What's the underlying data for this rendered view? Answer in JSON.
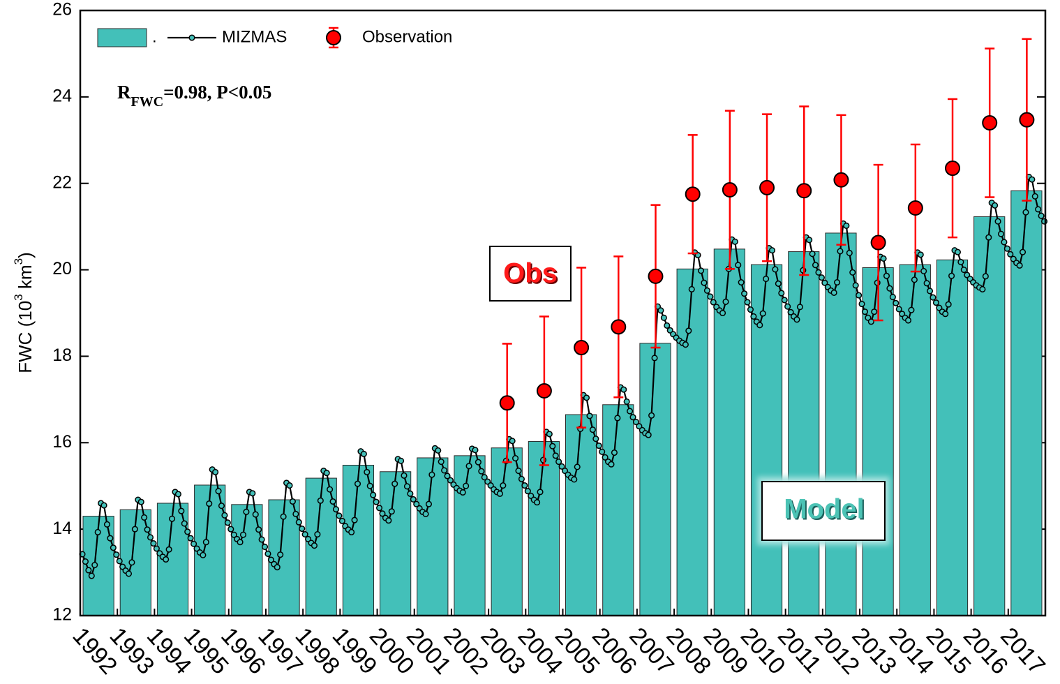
{
  "chart_data": {
    "type": "bar",
    "ylabel": [
      "FWC (10",
      "3",
      " km",
      "3",
      ")"
    ],
    "annotation": {
      "text": "R",
      "sub": "FWC",
      "rest": "=0.98, P<0.05"
    },
    "boxes": [
      "Obs",
      "Model"
    ],
    "categories": [
      "1992",
      "1993",
      "1994",
      "1995",
      "1996",
      "1997",
      "1998",
      "1999",
      "2000",
      "2001",
      "2002",
      "2003",
      "2004",
      "2005",
      "2006",
      "2007",
      "2008",
      "2009",
      "2010",
      "2011",
      "2012",
      "2013",
      "2014",
      "2015",
      "2016",
      "2017"
    ],
    "ylim": [
      12,
      26
    ],
    "yticks": [
      12,
      14,
      16,
      18,
      20,
      22,
      24,
      26
    ],
    "series": [
      {
        "name": ".",
        "type": "bar",
        "color": "#43c0b9",
        "values": [
          14.3,
          14.45,
          14.6,
          15.02,
          14.57,
          14.68,
          15.18,
          15.48,
          15.33,
          15.65,
          15.7,
          15.88,
          16.03,
          16.65,
          16.88,
          18.3,
          20.02,
          20.48,
          20.12,
          20.42,
          20.85,
          20.05,
          20.12,
          20.23,
          21.23,
          21.83
        ]
      },
      {
        "name": "MIZMAS",
        "type": "line",
        "color": "#43c0b9",
        "values": [
          [
            13.42,
            13.25,
            13.05,
            12.92,
            13.17,
            13.93,
            14.6,
            14.55,
            14.11,
            13.79,
            13.57,
            13.41
          ],
          [
            13.26,
            13.13,
            13.04,
            12.97,
            13.23,
            14.0,
            14.68,
            14.63,
            14.27,
            13.99,
            13.81,
            13.67
          ],
          [
            13.55,
            13.44,
            13.36,
            13.3,
            13.53,
            14.24,
            14.86,
            14.81,
            14.42,
            14.13,
            13.94,
            13.79
          ],
          [
            13.66,
            13.55,
            13.46,
            13.4,
            13.7,
            14.59,
            15.38,
            15.32,
            14.88,
            14.54,
            14.32,
            14.15
          ],
          [
            14.0,
            13.87,
            13.77,
            13.7,
            13.87,
            14.4,
            14.86,
            14.83,
            14.34,
            13.99,
            13.76,
            13.59
          ],
          [
            13.43,
            13.29,
            13.19,
            13.12,
            13.41,
            14.29,
            15.07,
            15.01,
            14.64,
            14.35,
            14.16,
            14.01
          ],
          [
            13.88,
            13.77,
            13.68,
            13.62,
            13.88,
            14.66,
            15.35,
            15.3,
            14.92,
            14.64,
            14.46,
            14.31
          ],
          [
            14.19,
            14.07,
            13.99,
            13.93,
            14.21,
            15.05,
            15.8,
            15.74,
            15.32,
            15.0,
            14.79,
            14.63
          ],
          [
            14.49,
            14.36,
            14.26,
            14.2,
            14.41,
            15.05,
            15.62,
            15.58,
            15.24,
            14.99,
            14.82,
            14.69
          ],
          [
            14.58,
            14.48,
            14.4,
            14.35,
            14.58,
            15.26,
            15.87,
            15.82,
            15.56,
            15.36,
            15.23,
            15.13
          ],
          [
            15.03,
            14.95,
            14.89,
            14.85,
            15.0,
            15.46,
            15.86,
            15.83,
            15.55,
            15.34,
            15.2,
            15.1
          ],
          [
            15.01,
            14.92,
            14.86,
            14.82,
            15.01,
            15.58,
            16.08,
            16.04,
            15.64,
            15.35,
            15.16,
            15.01
          ],
          [
            14.88,
            14.77,
            14.68,
            14.62,
            14.86,
            15.6,
            16.25,
            16.2,
            15.92,
            15.7,
            15.56,
            15.45
          ],
          [
            15.35,
            15.26,
            15.19,
            15.15,
            15.44,
            16.32,
            17.1,
            17.04,
            16.62,
            16.3,
            16.09,
            15.93
          ],
          [
            15.79,
            15.66,
            15.56,
            15.5,
            15.77,
            16.57,
            17.28,
            17.23,
            16.95,
            16.73,
            16.59,
            16.48
          ],
          [
            16.38,
            16.29,
            16.22,
            16.18,
            16.63,
            17.96,
            19.15,
            19.06,
            18.89,
            18.71,
            18.6,
            18.51
          ],
          [
            18.43,
            18.36,
            18.31,
            18.27,
            18.59,
            19.55,
            20.4,
            20.34,
            19.98,
            19.7,
            19.52,
            19.38
          ],
          [
            19.25,
            19.14,
            19.06,
            19.0,
            19.26,
            20.02,
            20.7,
            20.65,
            20.11,
            19.71,
            19.45,
            19.25
          ],
          [
            19.08,
            18.92,
            18.8,
            18.72,
            18.99,
            19.79,
            20.5,
            20.45,
            20.01,
            19.68,
            19.46,
            19.3
          ],
          [
            19.15,
            19.02,
            18.92,
            18.85,
            19.14,
            19.99,
            20.75,
            20.69,
            20.37,
            20.11,
            19.94,
            19.82
          ],
          [
            19.7,
            19.6,
            19.52,
            19.47,
            19.71,
            20.43,
            21.07,
            21.02,
            20.39,
            19.94,
            19.64,
            19.41
          ],
          [
            19.21,
            19.03,
            18.89,
            18.8,
            19.03,
            19.7,
            20.3,
            20.26,
            19.86,
            19.57,
            19.37,
            19.23
          ],
          [
            19.09,
            18.98,
            18.89,
            18.83,
            19.07,
            19.77,
            20.4,
            20.35,
            19.97,
            19.69,
            19.51,
            19.36
          ],
          [
            19.24,
            19.12,
            19.03,
            18.98,
            19.2,
            19.86,
            20.45,
            20.41,
            20.18,
            20.0,
            19.88,
            19.79
          ],
          [
            19.71,
            19.64,
            19.59,
            19.55,
            19.85,
            20.75,
            21.55,
            21.49,
            21.12,
            20.83,
            20.64,
            20.49
          ],
          [
            20.36,
            20.25,
            20.16,
            20.1,
            20.41,
            21.33,
            22.15,
            22.09,
            21.7,
            21.4,
            21.25,
            21.12
          ]
        ]
      },
      {
        "name": "Observation",
        "type": "errorbar",
        "color": "#ff0000",
        "values": [
          null,
          null,
          null,
          null,
          null,
          null,
          null,
          null,
          null,
          null,
          null,
          16.92,
          17.2,
          18.2,
          18.68,
          19.85,
          21.75,
          21.85,
          21.9,
          21.83,
          22.08,
          20.63,
          21.43,
          22.35,
          23.4,
          23.47
        ],
        "errors": [
          null,
          null,
          null,
          null,
          null,
          null,
          null,
          null,
          null,
          null,
          null,
          1.37,
          1.72,
          1.85,
          1.63,
          1.65,
          1.37,
          1.83,
          1.7,
          1.95,
          1.5,
          1.8,
          1.47,
          1.6,
          1.72,
          1.87
        ]
      }
    ]
  }
}
